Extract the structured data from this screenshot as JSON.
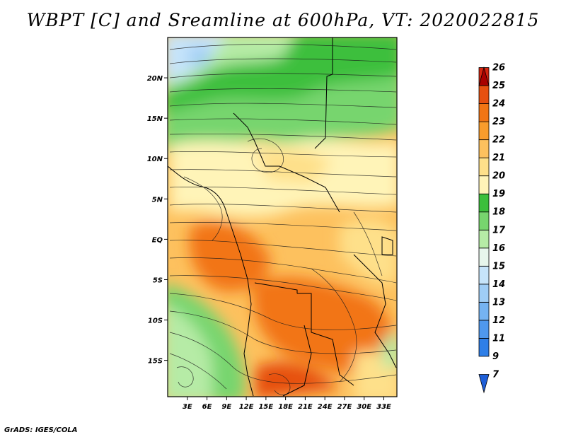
{
  "title": "WBPT [C] and Sreamline at 600hPa, VT: 2020022815",
  "footer": "GrADS: IGES/COLA",
  "map": {
    "lon_range": [
      0,
      35
    ],
    "lat_range": [
      -19.5,
      25
    ],
    "x_ticks": [
      "3E",
      "6E",
      "9E",
      "12E",
      "15E",
      "18E",
      "21E",
      "24E",
      "27E",
      "30E",
      "33E"
    ],
    "y_ticks": [
      "20N",
      "15N",
      "10N",
      "5N",
      "EQ",
      "5S",
      "10S",
      "15S"
    ]
  },
  "colorbar": {
    "levels": [
      "7",
      "9",
      "11",
      "12",
      "13",
      "14",
      "15",
      "16",
      "17",
      "18",
      "19",
      "20",
      "21",
      "22",
      "23",
      "24",
      "25",
      "26"
    ],
    "colors": [
      "#1e5fd8",
      "#2e7fe8",
      "#4f98ee",
      "#75b3f2",
      "#9fcdf6",
      "#c6e4fa",
      "#e7f6ec",
      "#b6eba6",
      "#77d56e",
      "#3cbf3c",
      "#fff4b8",
      "#fee08a",
      "#fdc15e",
      "#f99c2c",
      "#f27514",
      "#e65010",
      "#d42510",
      "#a80000"
    ]
  }
}
